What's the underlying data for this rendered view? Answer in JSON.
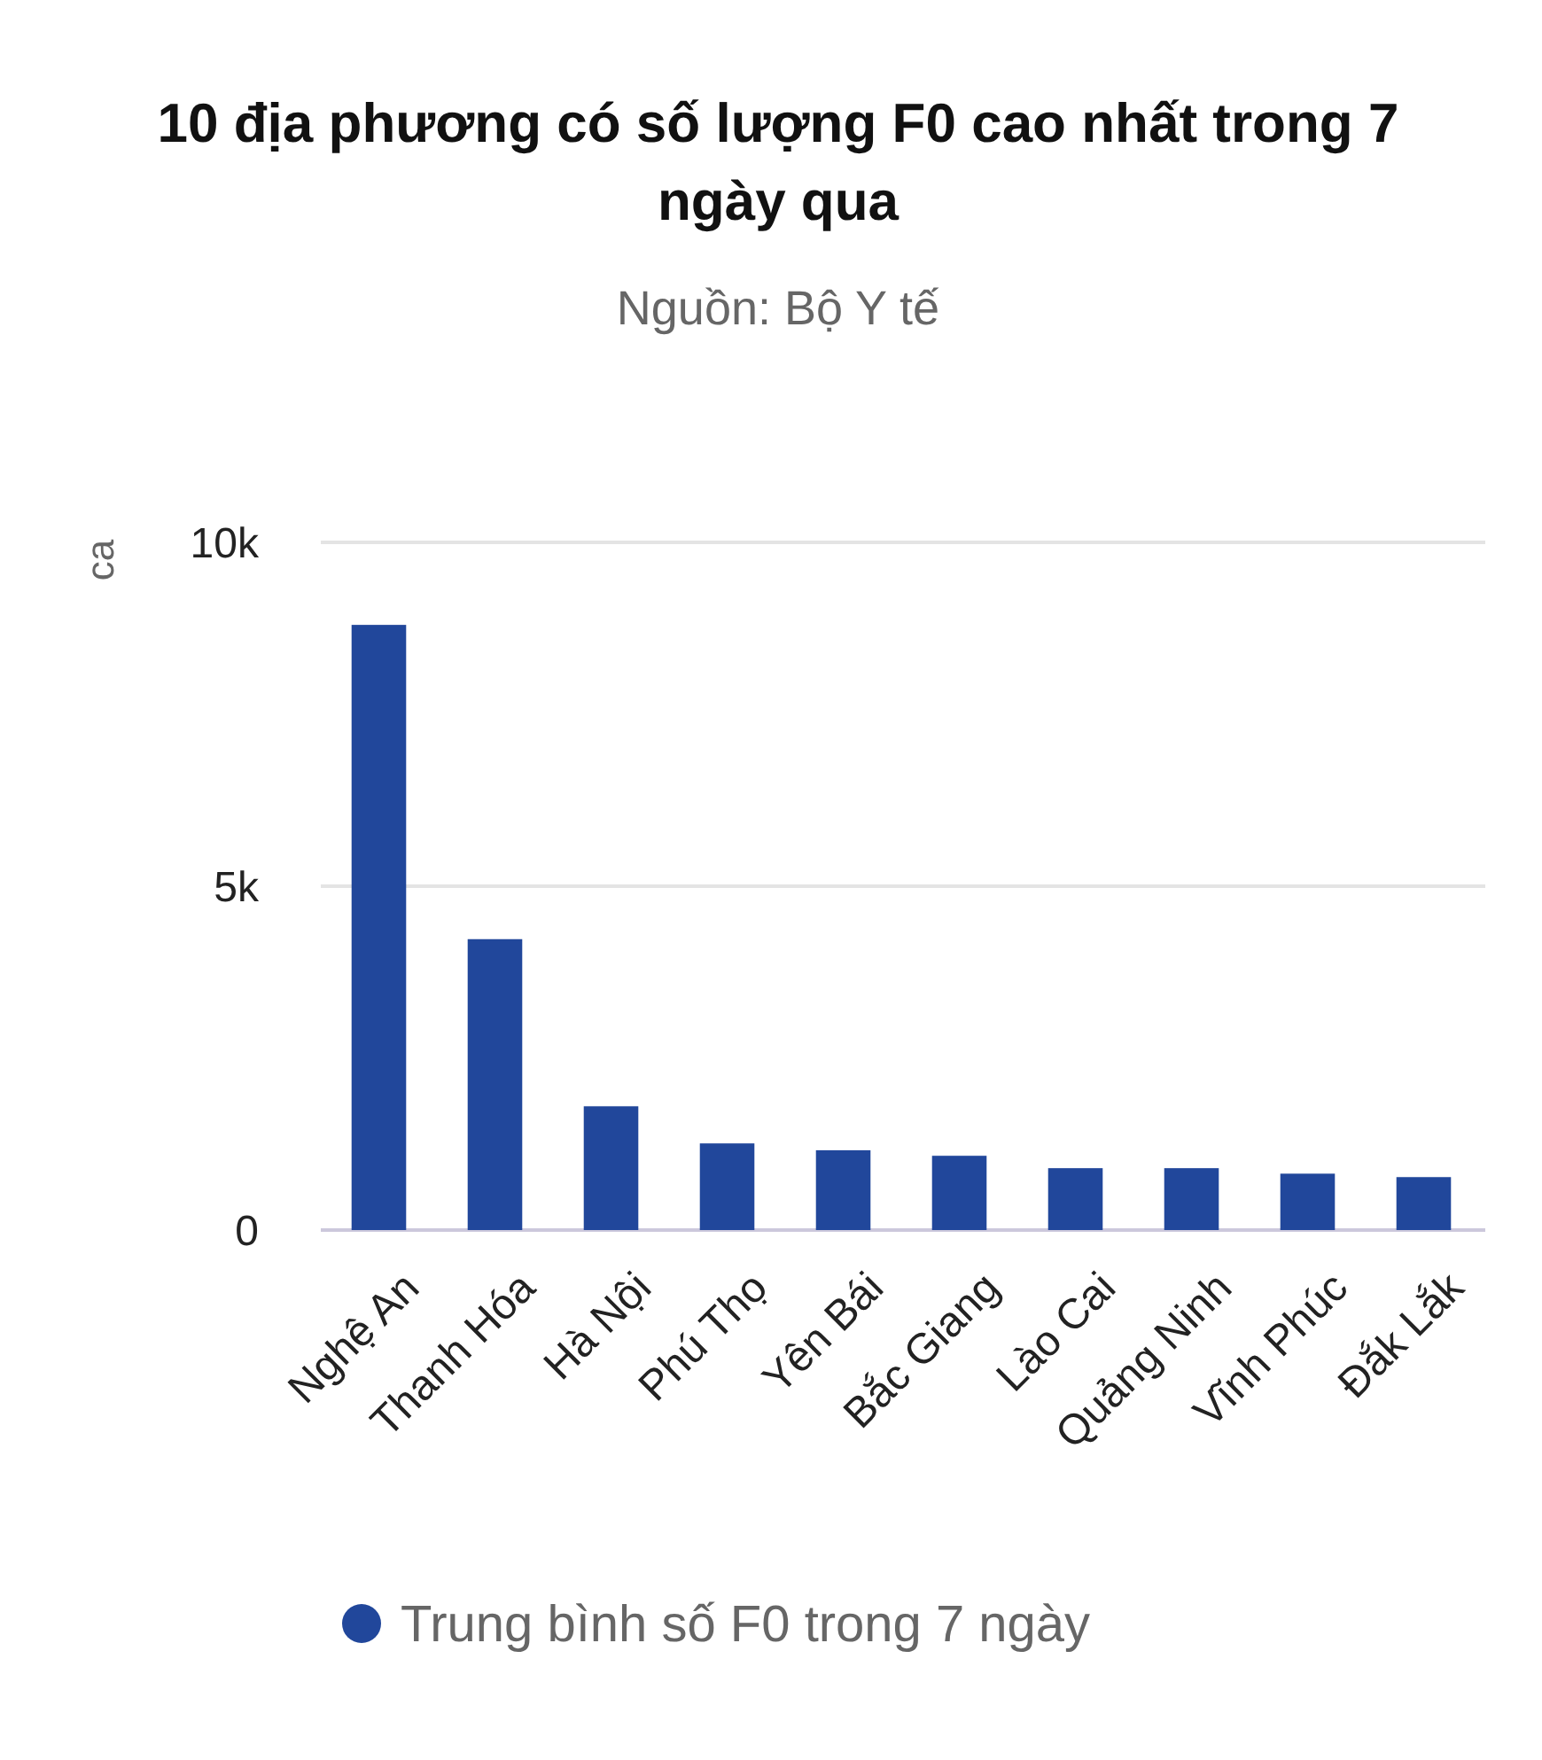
{
  "chart_data": {
    "type": "bar",
    "title": "10 địa phương có số lượng F0 cao nhất trong 7 ngày qua",
    "subtitle": "Nguồn: Bộ Y tế",
    "ylabel": "ca",
    "categories": [
      "Nghệ An",
      "Thanh Hóa",
      "Hà Nội",
      "Phú Thọ",
      "Yên Bái",
      "Bắc Giang",
      "Lào Cai",
      "Quảng Ninh",
      "Vĩnh Phúc",
      "Đắk Lắk"
    ],
    "series": [
      {
        "name": "Trung bình số F0 trong 7 ngày",
        "color": "#21479b",
        "values": [
          8800,
          4230,
          1800,
          1260,
          1160,
          1080,
          900,
          900,
          820,
          770
        ]
      }
    ],
    "ylim": [
      0,
      10000
    ],
    "yticks": [
      0,
      {
        "value": 5000,
        "label": "5k"
      },
      {
        "value": 10000,
        "label": "10k"
      }
    ],
    "grid": "y",
    "legend": "bottom",
    "marker": "circle"
  }
}
